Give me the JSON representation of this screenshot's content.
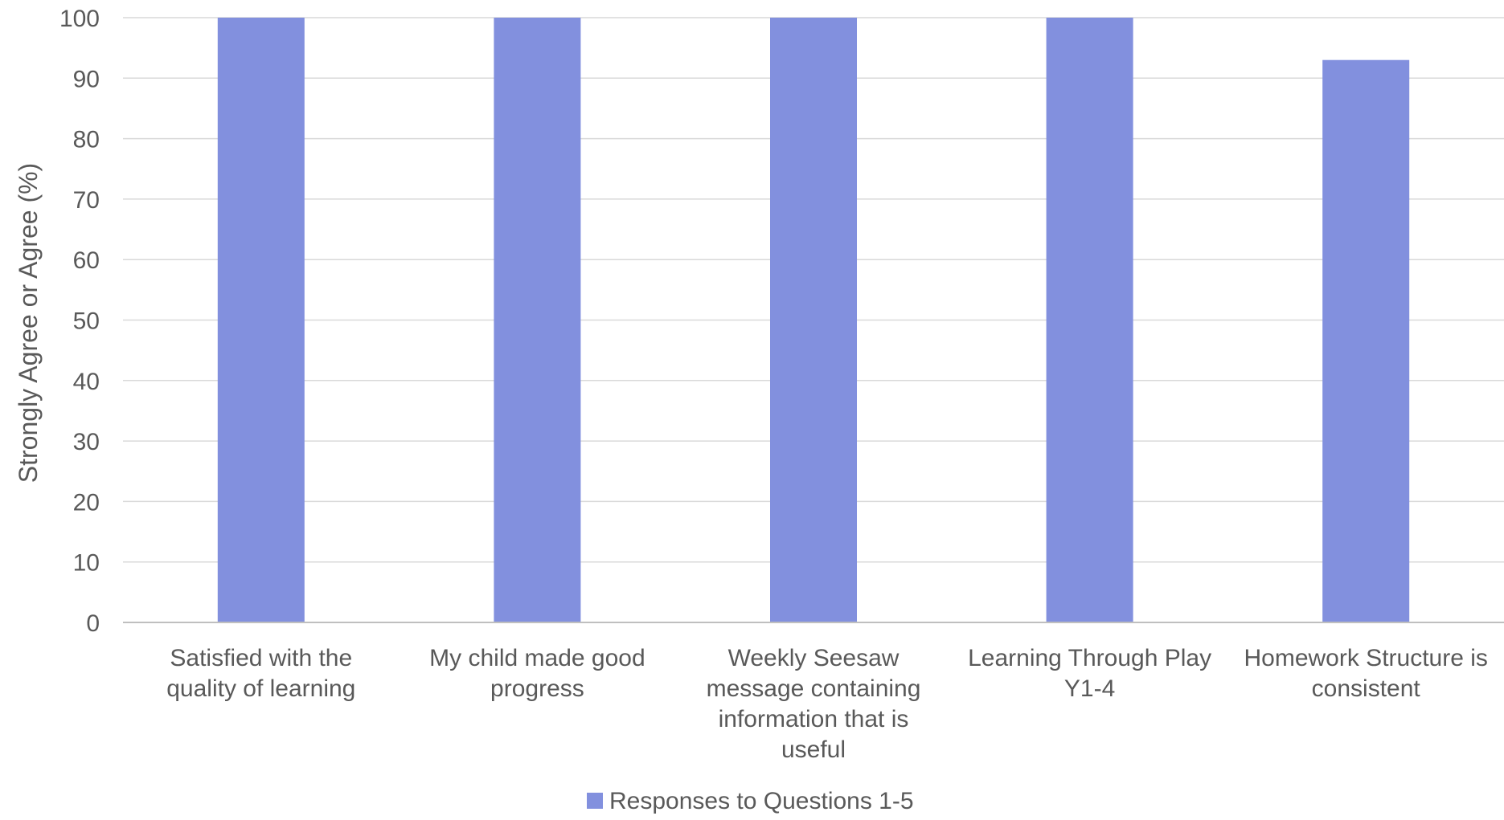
{
  "chart_data": {
    "type": "bar",
    "categories": [
      [
        "Satisfied with the",
        "quality of learning"
      ],
      [
        "My child made good",
        "progress"
      ],
      [
        "Weekly Seesaw",
        "message containing",
        "information that is",
        "useful"
      ],
      [
        "Learning Through Play",
        "Y1-4"
      ],
      [
        "Homework Structure is",
        "consistent"
      ]
    ],
    "series": [
      {
        "name": "Responses to Questions 1-5",
        "values": [
          100,
          100,
          100,
          100,
          93
        ],
        "color": "#8290de"
      }
    ],
    "ylabel": "Strongly Agree or Agree (%)",
    "xlabel": "",
    "title": "",
    "ylim": [
      0,
      100
    ],
    "yticks": [
      "0",
      "10",
      "20",
      "30",
      "40",
      "50",
      "60",
      "70",
      "80",
      "90",
      "100"
    ],
    "grid": true,
    "legend_position": "bottom-center",
    "gridline_color": "#d9d9d9",
    "axis_color": "#bfbfbf",
    "text_color": "#595959"
  }
}
